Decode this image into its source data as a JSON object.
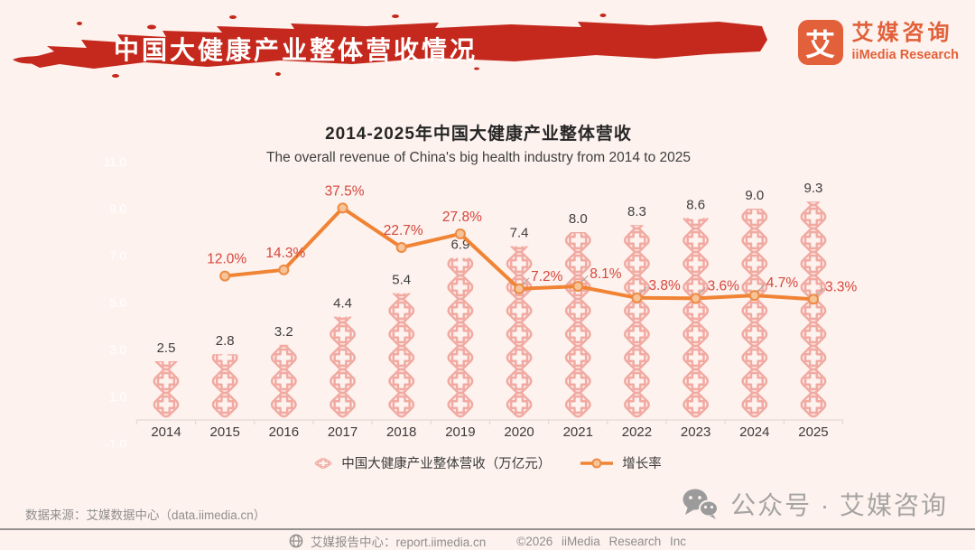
{
  "header": {
    "banner_title": "中国大健康产业整体营收情况"
  },
  "logo": {
    "glyph": "艾",
    "name_cn": "艾媒咨询",
    "name_en": "iiMedia Research"
  },
  "chart_data": {
    "type": "bar",
    "subtype": "pictogram-bar-with-line",
    "title": "2014-2025年中国大健康产业整体营收",
    "subtitle": "The overall revenue of China's big health industry from 2014 to 2025",
    "categories": [
      "2014",
      "2015",
      "2016",
      "2017",
      "2018",
      "2019",
      "2020",
      "2021",
      "2022",
      "2023",
      "2024",
      "2025"
    ],
    "y_axis_left": {
      "ticks": [
        "11.0",
        "9.0",
        "7.0",
        "5.0",
        "3.0",
        "1.0",
        "-1.0"
      ],
      "tick_values": [
        11,
        9,
        7,
        5,
        3,
        1,
        -1
      ],
      "color": "#ffffff"
    },
    "series": [
      {
        "name": "中国大健康产业整体营收（万亿元）",
        "type": "pictogram_bar",
        "icon": "medical-cross-diamond-icon",
        "color": "#f1aaa2",
        "values": [
          2.5,
          2.8,
          3.2,
          4.4,
          5.4,
          6.9,
          7.4,
          8.0,
          8.3,
          8.6,
          9.0,
          9.3
        ],
        "labels": [
          "2.5",
          "2.8",
          "3.2",
          "4.4",
          "5.4",
          "6.9",
          "7.4",
          "8.0",
          "8.3",
          "8.6",
          "9.0",
          "9.3"
        ]
      },
      {
        "name": "增长率",
        "type": "line",
        "color": "#f08334",
        "point_fill": "#f7c399",
        "label_color": "#d6463c",
        "points": [
          {
            "category": "2015",
            "value": 12.0,
            "label": "12.0%",
            "placement": "above"
          },
          {
            "category": "2016",
            "value": 14.3,
            "label": "14.3%",
            "placement": "above"
          },
          {
            "category": "2017",
            "value": 37.5,
            "label": "37.5%",
            "placement": "above"
          },
          {
            "category": "2018",
            "value": 22.7,
            "label": "22.7%",
            "placement": "above"
          },
          {
            "category": "2019",
            "value": 27.8,
            "label": "27.8%",
            "placement": "above"
          },
          {
            "category": "2020",
            "value": 7.2,
            "label": "7.2%",
            "placement": "right"
          },
          {
            "category": "2021",
            "value": 8.1,
            "label": "8.1%",
            "placement": "right"
          },
          {
            "category": "2022",
            "value": 3.8,
            "label": "3.8%",
            "placement": "right"
          },
          {
            "category": "2023",
            "value": 3.6,
            "label": "3.6%",
            "placement": "right"
          },
          {
            "category": "2024",
            "value": 4.7,
            "label": "4.7%",
            "placement": "right"
          },
          {
            "category": "2025",
            "value": 3.3,
            "label": "3.3%",
            "placement": "right"
          }
        ]
      }
    ],
    "legend": {
      "position": "bottom",
      "items": [
        {
          "label": "中国大健康产业整体营收（万亿元）",
          "marker": "pictogram"
        },
        {
          "label": "增长率",
          "marker": "line"
        }
      ]
    }
  },
  "source": {
    "text": "数据来源：艾媒数据中心（data.iimedia.cn）"
  },
  "wechat": {
    "label": "公众号 · 艾媒咨询"
  },
  "footer": {
    "site_label": "艾媒报告中心：report.iimedia.cn",
    "copyright": "©2026 iiMedia Research Inc"
  },
  "colors": {
    "background": "#fdf2ee",
    "banner_red": "#c5281c",
    "brand_orange": "#e2603a",
    "bar_icon_pink": "#f1aaa2",
    "growth_line_orange": "#f08334",
    "growth_label_red": "#d6463c",
    "value_label": "#3e3e3e",
    "axis_line": "#e4d9d3",
    "year_label": "#3d3b3a",
    "footer_gray": "#8f8d8b"
  }
}
